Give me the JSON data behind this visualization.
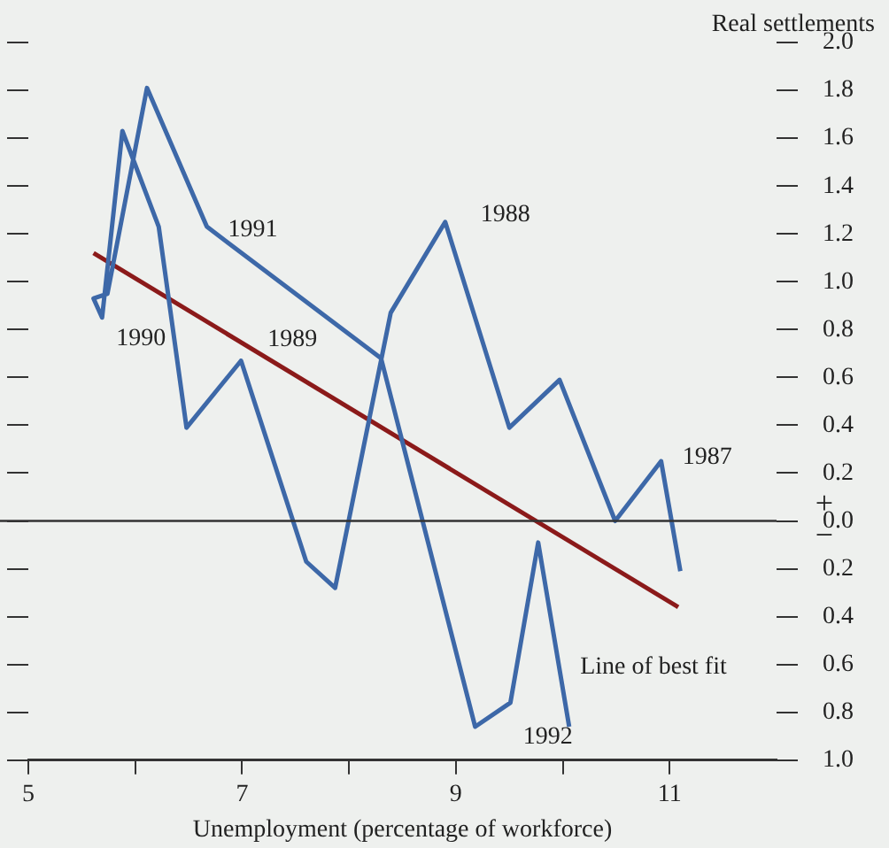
{
  "chart_data": {
    "type": "line",
    "xlabel": "Unemployment (percentage of workforce)",
    "ylabel": "Real settlements",
    "xlim": [
      5,
      12
    ],
    "xticks": [
      5,
      {
        "value": 6,
        "label": null
      },
      7,
      {
        "value": 8,
        "label": null
      },
      9,
      {
        "value": 10,
        "label": null
      },
      11
    ],
    "ylim": [
      -1,
      2
    ],
    "yticks": [
      {
        "value": -1,
        "label": "1.0"
      },
      {
        "value": -0.8,
        "label": "0.8"
      },
      {
        "value": -0.6,
        "label": "0.6"
      },
      {
        "value": -0.4,
        "label": "0.4"
      },
      {
        "value": -0.2,
        "label": "0.2"
      },
      {
        "value": 0,
        "label": "0.0"
      },
      {
        "value": 0.2,
        "label": "0.2"
      },
      {
        "value": 0.4,
        "label": "0.4"
      },
      {
        "value": 0.6,
        "label": "0.6"
      },
      {
        "value": 0.8,
        "label": "0.8"
      },
      {
        "value": 1,
        "label": "1.0"
      },
      {
        "value": 1.2,
        "label": "1.2"
      },
      {
        "value": 1.4,
        "label": "1.4"
      },
      {
        "value": 1.6,
        "label": "1.6"
      },
      {
        "value": 1.8,
        "label": "1.8"
      },
      {
        "value": 2,
        "label": "2.0"
      }
    ],
    "series": [
      {
        "color": "#3d68a8",
        "x": [
          11.1,
          10.92,
          10.49,
          9.97,
          9.5,
          8.9,
          8.39,
          7.87,
          7.6,
          6.99,
          6.48,
          6.22,
          5.88,
          5.69,
          5.61,
          5.74,
          6.11,
          6.67,
          8.3,
          9.18,
          9.51,
          9.77,
          10.06
        ],
        "values": [
          -0.21,
          0.25,
          0.0,
          0.59,
          0.39,
          1.25,
          0.87,
          -0.28,
          -0.17,
          0.67,
          0.39,
          1.23,
          1.63,
          0.85,
          0.93,
          0.95,
          1.81,
          1.23,
          0.68,
          -0.86,
          -0.76,
          -0.09,
          -0.86
        ]
      },
      {
        "color": "#8b1a1a",
        "x": [
          5.61,
          11.08
        ],
        "values": [
          1.12,
          -0.36
        ]
      }
    ],
    "ref_lines": [
      {
        "axis": "y",
        "value": 0,
        "color": "#333333"
      }
    ],
    "annotations": [
      {
        "text": "1991",
        "x": 6.67,
        "y": 1.23
      },
      {
        "text": "1990",
        "x": 5.69,
        "y": 0.85
      },
      {
        "text": "1989",
        "x": 6.99,
        "y": 0.67
      },
      {
        "text": "1988",
        "x": 8.9,
        "y": 1.25
      },
      {
        "text": "1987",
        "x": 10.92,
        "y": 0.25
      },
      {
        "text": "1992",
        "x": 10.06,
        "y": -0.86
      },
      {
        "text": "Line of best fit",
        "x": 11.08,
        "y": -0.36
      },
      "+",
      "−"
    ],
    "marker": "none",
    "legend": false,
    "grid": false
  }
}
